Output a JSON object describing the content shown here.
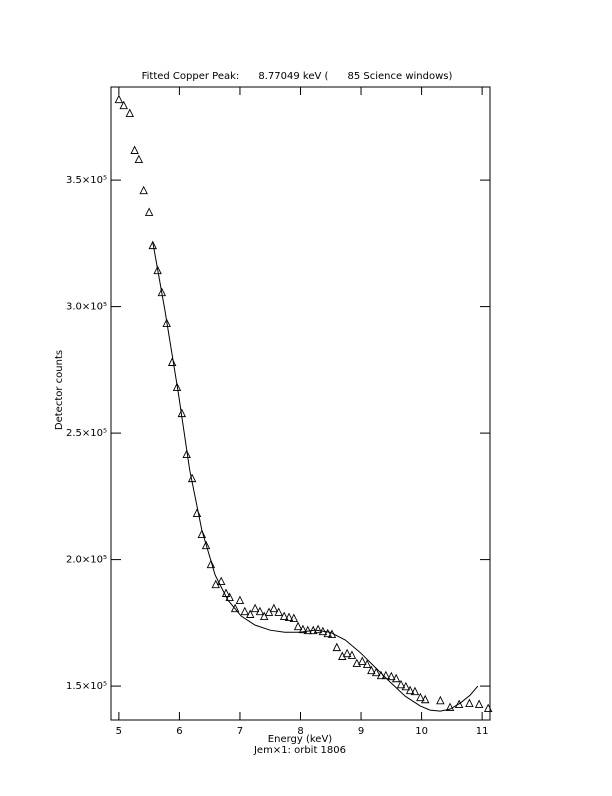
{
  "chart_data": {
    "type": "scatter",
    "title": "Fitted Copper Peak:      8.77049 keV (      85 Science windows)",
    "x_label": "Energy (keV)",
    "subtitle": "Jem×1: orbit 1806",
    "y_label": "Detector counts",
    "xlim": [
      4.87,
      11.13
    ],
    "ylim": [
      136600,
      386800
    ],
    "xticks": [
      5,
      6,
      7,
      8,
      9,
      10,
      11
    ],
    "yticks": [
      {
        "value": 150000,
        "label": "1.5×10⁵"
      },
      {
        "value": 200000,
        "label": "2.0×10⁵"
      },
      {
        "value": 250000,
        "label": "2.5×10⁵"
      },
      {
        "value": 300000,
        "label": "3.0×10⁵"
      },
      {
        "value": 350000,
        "label": "3.5×10⁵"
      }
    ],
    "color": "#000000",
    "points": {
      "x": [
        5.0,
        5.08,
        5.18,
        5.26,
        5.33,
        5.41,
        5.5,
        5.56,
        5.64,
        5.71,
        5.79,
        5.88,
        5.96,
        6.04,
        6.12,
        6.21,
        6.29,
        6.37,
        6.44,
        6.52,
        6.6,
        6.69,
        6.77,
        6.83,
        6.92,
        7.0,
        7.08,
        7.17,
        7.25,
        7.33,
        7.4,
        7.48,
        7.56,
        7.64,
        7.73,
        7.81,
        7.89,
        7.96,
        8.04,
        8.12,
        8.21,
        8.29,
        8.37,
        8.45,
        8.52,
        8.6,
        8.69,
        8.77,
        8.85,
        8.93,
        9.02,
        9.1,
        9.17,
        9.25,
        9.33,
        9.41,
        9.5,
        9.58,
        9.66,
        9.74,
        9.81,
        9.89,
        9.98,
        10.06,
        10.31,
        10.47,
        10.62,
        10.79,
        10.95,
        11.1
      ],
      "values": [
        382000,
        379600,
        376500,
        361900,
        358300,
        346000,
        337400,
        324300,
        314400,
        305700,
        293500,
        278100,
        268200,
        257900,
        241700,
        232200,
        218400,
        210100,
        205700,
        198200,
        190300,
        191500,
        186800,
        185200,
        180800,
        184000,
        179600,
        178500,
        180800,
        179600,
        177700,
        179300,
        180800,
        179300,
        177700,
        177300,
        176900,
        173700,
        172500,
        172100,
        172100,
        172500,
        171700,
        170900,
        170600,
        165400,
        161900,
        163000,
        162300,
        159100,
        159900,
        158700,
        156300,
        155500,
        154300,
        154300,
        153900,
        153100,
        150700,
        149900,
        148400,
        148000,
        145600,
        144800,
        144400,
        141700,
        142900,
        143300,
        142900,
        141300
      ]
    },
    "fit": {
      "x": [
        5.56,
        5.76,
        5.98,
        6.17,
        6.37,
        6.59,
        6.8,
        7.02,
        7.25,
        7.5,
        7.74,
        7.99,
        8.24,
        8.49,
        8.74,
        8.98,
        9.23,
        9.48,
        9.73,
        9.98,
        10.14,
        10.31,
        10.47,
        10.64,
        10.8,
        10.93
      ],
      "values": [
        325500,
        298600,
        266200,
        235400,
        211700,
        193900,
        184000,
        177700,
        174100,
        172100,
        171300,
        171300,
        172100,
        171300,
        168200,
        163400,
        157500,
        151600,
        146000,
        142100,
        140500,
        140100,
        140900,
        143300,
        146400,
        150000
      ]
    }
  }
}
